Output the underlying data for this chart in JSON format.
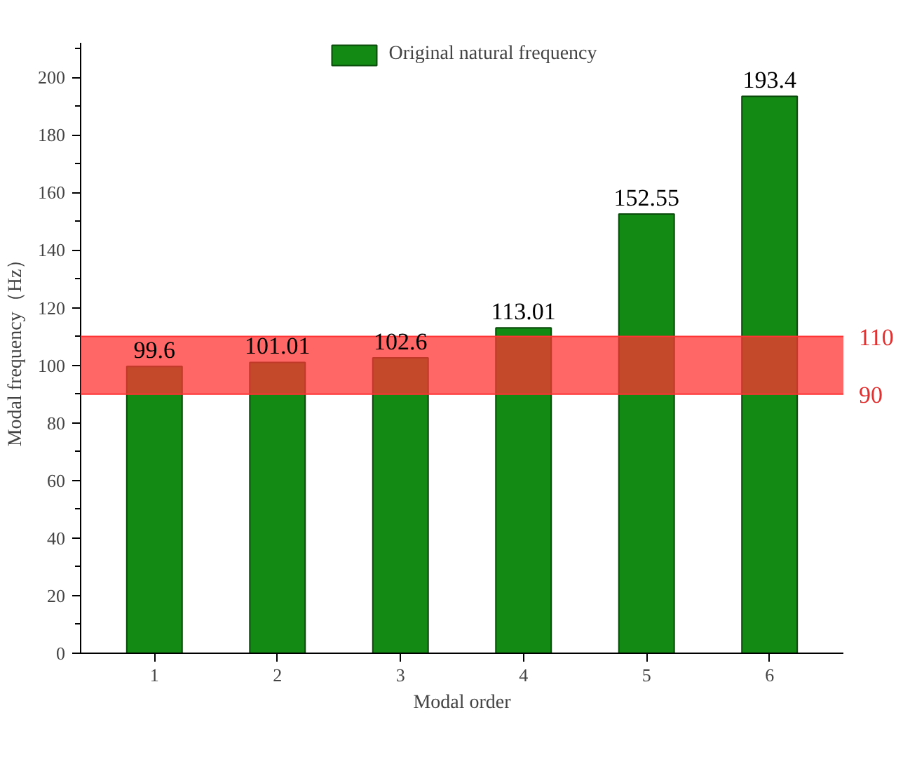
{
  "chart_data": {
    "type": "bar",
    "xlabel": "Modal order",
    "ylabel": "Modal frequency（Hz）",
    "categories": [
      "1",
      "2",
      "3",
      "4",
      "5",
      "6"
    ],
    "series": [
      {
        "name": "Original natural frequency",
        "color": "#138a13",
        "values": [
          99.6,
          101.01,
          102.6,
          113.01,
          152.55,
          193.4
        ]
      }
    ],
    "data_labels": true,
    "ylim": [
      0,
      212
    ],
    "yticks": [
      0,
      20,
      40,
      60,
      80,
      100,
      120,
      140,
      160,
      180,
      200
    ],
    "bands": [
      {
        "axis": "y",
        "from": 90,
        "to": 110,
        "label": null,
        "color": "#ff3333"
      }
    ],
    "ref_lines": [
      {
        "axis": "y",
        "value": 110,
        "label": "110",
        "color": "#ff3333"
      },
      {
        "axis": "y",
        "value": 90,
        "label": "90",
        "color": "#ff3333"
      }
    ],
    "grid": false,
    "legend": "top"
  }
}
